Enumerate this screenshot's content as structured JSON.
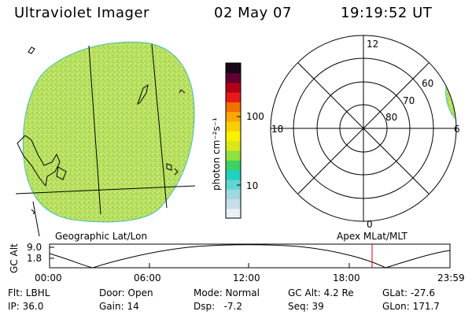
{
  "header": {
    "title": "Ultraviolet Imager",
    "date": "02 May 07",
    "time": "19:19:52 UT"
  },
  "colorbar": {
    "unit_label": "photon cm⁻²s⁻¹",
    "ticks": [
      {
        "label": "100",
        "value": 100
      },
      {
        "label": "10",
        "value": 10
      }
    ],
    "colors": [
      "#e8f0f8",
      "#c8dde8",
      "#9fd8e0",
      "#5fd6d0",
      "#20d0c0",
      "#40d060",
      "#90e040",
      "#d8e818",
      "#f8f000",
      "#f8d000",
      "#f8a800",
      "#f07000",
      "#e81818",
      "#b00018",
      "#600030",
      "#180818"
    ]
  },
  "geo_panel": {
    "label": "Geographic Lat/Lon",
    "fill_color": "#b8e060"
  },
  "polar_panel": {
    "label": "Apex MLat/MLT",
    "mlt_labels": [
      "12",
      "18",
      "6",
      "0"
    ],
    "lat_labels": [
      "60",
      "70",
      "80"
    ],
    "fill_color": "#b8e060"
  },
  "orbit_plot": {
    "ylabel": "GC Alt",
    "y_ticks": [
      "9.0",
      "1.8"
    ],
    "x_ticks": [
      "00:00",
      "06:00",
      "12:00",
      "18:00",
      "23:59"
    ],
    "current_time_hours": 19.33,
    "marker_color": "#e00000"
  },
  "footer": {
    "filter": "Flt: LBHL",
    "ip": "IP: 36.0",
    "door": "Door: Open",
    "gain": "Gain: 14",
    "mode": "Mode: Normal",
    "dsp": "Dsp:   -7.2",
    "gc_alt": "GC Alt: 4.2 Re",
    "seq": "Seq: 39",
    "glat": "GLat: -27.6",
    "glon": "GLon: 171.7"
  }
}
